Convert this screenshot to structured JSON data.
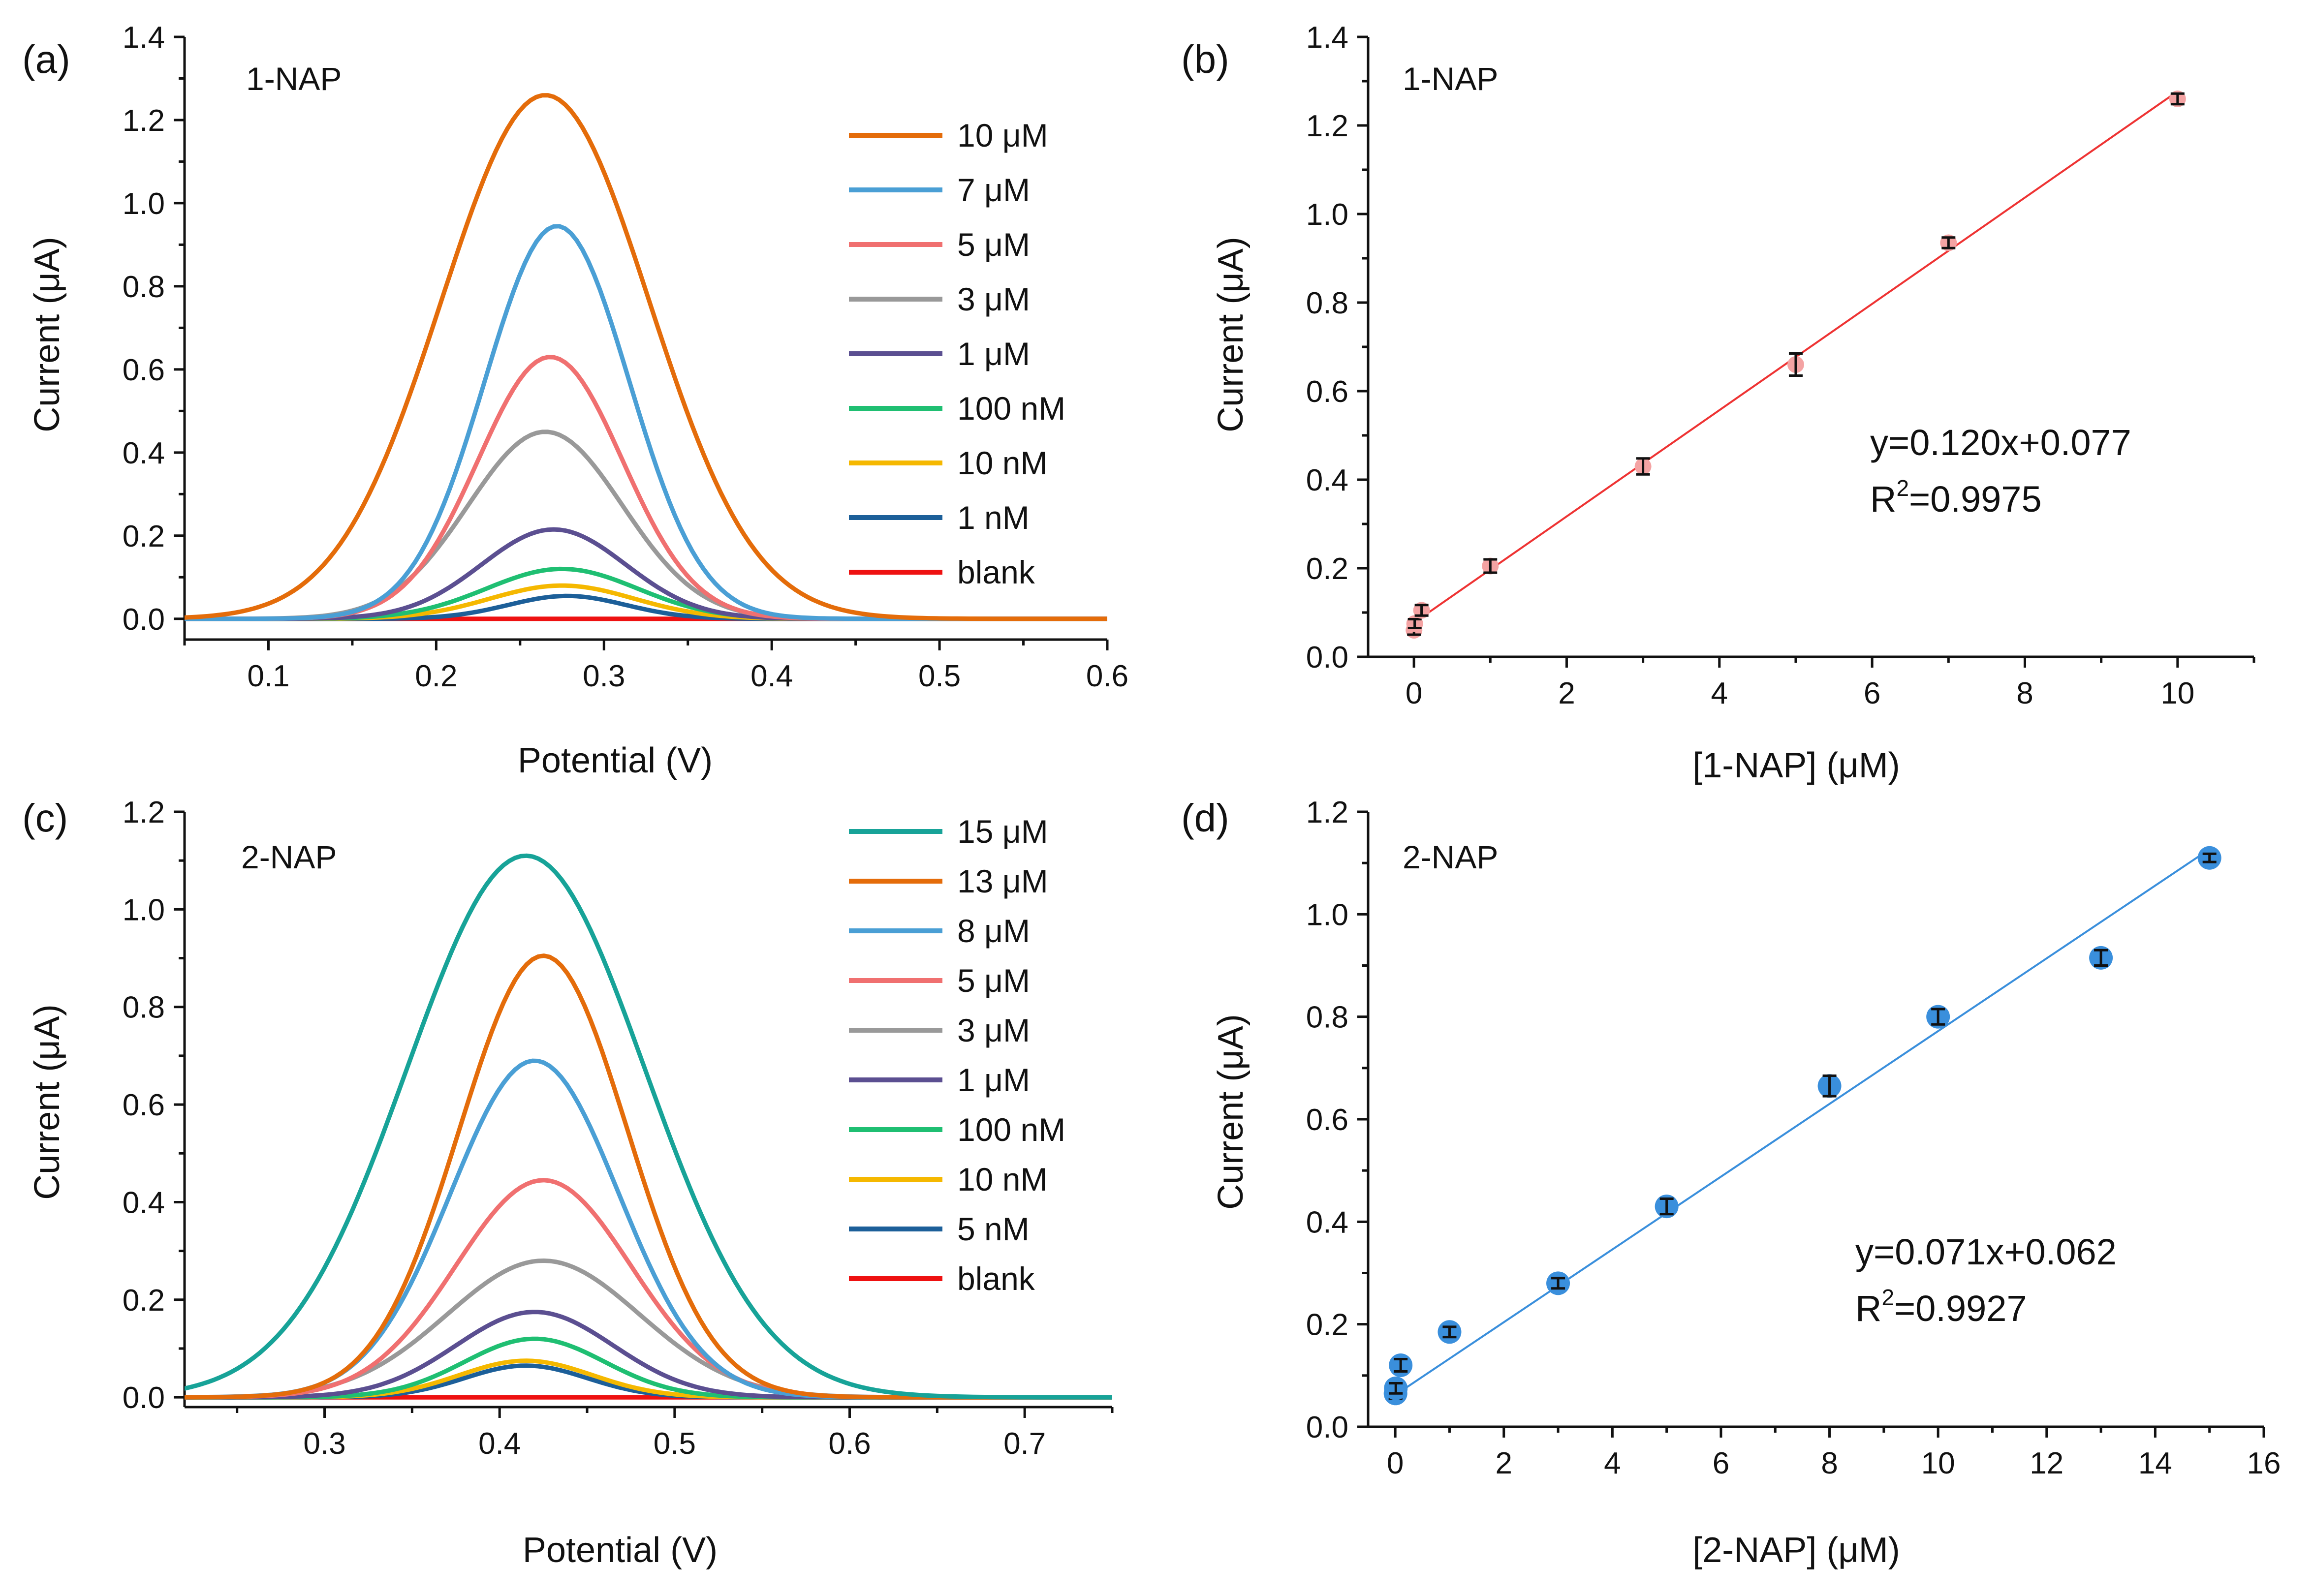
{
  "chart_data": [
    {
      "panel": "(a)",
      "type": "line",
      "title": "1-NAP",
      "xlabel": "Potential (V)",
      "ylabel": "Current (μA)",
      "xlim": [
        0.05,
        0.6
      ],
      "ylim": [
        -0.05,
        1.4
      ],
      "xticks": [
        "0.1",
        "0.2",
        "0.3",
        "0.4",
        "0.5",
        "0.6"
      ],
      "yticks": [
        "0.0",
        "0.2",
        "0.4",
        "0.6",
        "0.8",
        "1.0",
        "1.2",
        "1.4"
      ],
      "legend_position": "top-right",
      "series": [
        {
          "name": "10 μM",
          "color": "#e46c0a",
          "peak_x": 0.265,
          "peak_y": 1.26,
          "width": 0.062
        },
        {
          "name": "7 μM",
          "color": "#4a9fd5",
          "peak_x": 0.272,
          "peak_y": 0.945,
          "width": 0.043
        },
        {
          "name": "5 μM",
          "color": "#f07070",
          "peak_x": 0.268,
          "peak_y": 0.63,
          "width": 0.043
        },
        {
          "name": "3 μM",
          "color": "#999999",
          "peak_x": 0.265,
          "peak_y": 0.45,
          "width": 0.046
        },
        {
          "name": "1 μM",
          "color": "#5b4f91",
          "peak_x": 0.27,
          "peak_y": 0.215,
          "width": 0.043
        },
        {
          "name": "100 nM",
          "color": "#1fbf72",
          "peak_x": 0.275,
          "peak_y": 0.12,
          "width": 0.045
        },
        {
          "name": "10 nM",
          "color": "#f5b800",
          "peak_x": 0.275,
          "peak_y": 0.08,
          "width": 0.043
        },
        {
          "name": "1 nM",
          "color": "#1c5f99",
          "peak_x": 0.278,
          "peak_y": 0.055,
          "width": 0.035
        },
        {
          "name": "blank",
          "color": "#ee1111",
          "peak_x": 0.28,
          "peak_y": 0.0,
          "width": 0.05
        }
      ]
    },
    {
      "panel": "(b)",
      "type": "scatter",
      "title": "1-NAP",
      "xlabel": "[1-NAP] (μM)",
      "ylabel": "Current (μA)",
      "xlim": [
        -0.6,
        11
      ],
      "ylim": [
        0,
        1.4
      ],
      "xticks": [
        "0",
        "2",
        "4",
        "6",
        "8",
        "10"
      ],
      "yticks": [
        "0.0",
        "0.2",
        "0.4",
        "0.6",
        "0.8",
        "1.0",
        "1.2",
        "1.4"
      ],
      "marker_color": "#f4a3a3",
      "line_color": "#ee3333",
      "fit": {
        "slope": 0.12,
        "intercept": 0.077,
        "x_range": [
          0,
          10
        ]
      },
      "equation": "y=0.120x+0.077",
      "r2_prefix": "R",
      "r2_sup": "2",
      "r2_value": "=0.9975",
      "points": [
        {
          "x": 0.001,
          "y": 0.06,
          "err": 0.01
        },
        {
          "x": 0.01,
          "y": 0.075,
          "err": 0.01
        },
        {
          "x": 0.1,
          "y": 0.105,
          "err": 0.012
        },
        {
          "x": 1,
          "y": 0.205,
          "err": 0.015
        },
        {
          "x": 3,
          "y": 0.43,
          "err": 0.018
        },
        {
          "x": 5,
          "y": 0.66,
          "err": 0.025
        },
        {
          "x": 7,
          "y": 0.935,
          "err": 0.012
        },
        {
          "x": 10,
          "y": 1.26,
          "err": 0.012
        }
      ]
    },
    {
      "panel": "(c)",
      "type": "line",
      "title": "2-NAP",
      "xlabel": "Potential (V)",
      "ylabel": "Current (μA)",
      "xlim": [
        0.22,
        0.75
      ],
      "ylim": [
        -0.02,
        1.2
      ],
      "xticks": [
        "0.3",
        "0.4",
        "0.5",
        "0.6",
        "0.7"
      ],
      "yticks": [
        "0.0",
        "0.2",
        "0.4",
        "0.6",
        "0.8",
        "1.0",
        "1.2"
      ],
      "legend_position": "top-right",
      "series": [
        {
          "name": "15 μM",
          "color": "#17a398",
          "peak_x": 0.415,
          "peak_y": 1.11,
          "width": 0.068
        },
        {
          "name": "13 μM",
          "color": "#e46c0a",
          "peak_x": 0.425,
          "peak_y": 0.905,
          "width": 0.048
        },
        {
          "name": "8 μM",
          "color": "#4a9fd5",
          "peak_x": 0.42,
          "peak_y": 0.69,
          "width": 0.048
        },
        {
          "name": "5 μM",
          "color": "#f07070",
          "peak_x": 0.425,
          "peak_y": 0.445,
          "width": 0.05
        },
        {
          "name": "3 μM",
          "color": "#999999",
          "peak_x": 0.425,
          "peak_y": 0.28,
          "width": 0.055
        },
        {
          "name": "1 μM",
          "color": "#5b4f91",
          "peak_x": 0.42,
          "peak_y": 0.175,
          "width": 0.045
        },
        {
          "name": "100 nM",
          "color": "#1fbf72",
          "peak_x": 0.42,
          "peak_y": 0.12,
          "width": 0.04
        },
        {
          "name": "10 nM",
          "color": "#f5b800",
          "peak_x": 0.415,
          "peak_y": 0.075,
          "width": 0.038
        },
        {
          "name": "5 nM",
          "color": "#1c5f99",
          "peak_x": 0.415,
          "peak_y": 0.065,
          "width": 0.035
        },
        {
          "name": "blank",
          "color": "#ee1111",
          "peak_x": 0.42,
          "peak_y": 0.0,
          "width": 0.05
        }
      ]
    },
    {
      "panel": "(d)",
      "type": "scatter",
      "title": "2-NAP",
      "xlabel": "[2-NAP] (μM)",
      "ylabel": "Current (μA)",
      "xlim": [
        -0.5,
        16
      ],
      "ylim": [
        0,
        1.2
      ],
      "xticks": [
        "0",
        "2",
        "4",
        "6",
        "8",
        "10",
        "12",
        "14",
        "16"
      ],
      "yticks": [
        "0.0",
        "0.2",
        "0.4",
        "0.6",
        "0.8",
        "1.0",
        "1.2"
      ],
      "marker_color": "#3a8fdc",
      "line_color": "#3a8fdc",
      "fit": {
        "slope": 0.071,
        "intercept": 0.062,
        "x_range": [
          0,
          15
        ]
      },
      "equation": "y=0.071x+0.062",
      "r2_prefix": "R",
      "r2_sup": "2",
      "r2_value": "=0.9927",
      "points": [
        {
          "x": 0.005,
          "y": 0.065,
          "err": 0.01
        },
        {
          "x": 0.01,
          "y": 0.075,
          "err": 0.01
        },
        {
          "x": 0.1,
          "y": 0.12,
          "err": 0.012
        },
        {
          "x": 1,
          "y": 0.185,
          "err": 0.01
        },
        {
          "x": 3,
          "y": 0.28,
          "err": 0.01
        },
        {
          "x": 5,
          "y": 0.43,
          "err": 0.015
        },
        {
          "x": 8,
          "y": 0.665,
          "err": 0.02
        },
        {
          "x": 10,
          "y": 0.8,
          "err": 0.015
        },
        {
          "x": 13,
          "y": 0.915,
          "err": 0.015
        },
        {
          "x": 15,
          "y": 1.11,
          "err": 0.008
        }
      ]
    }
  ]
}
